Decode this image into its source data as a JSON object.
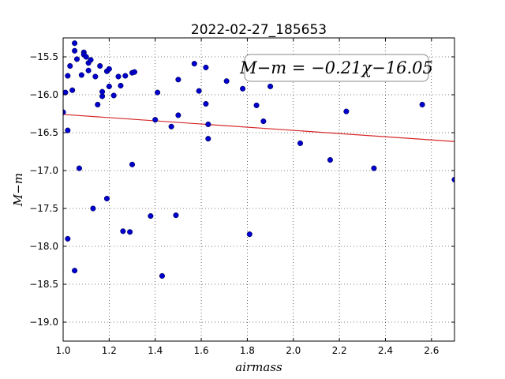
{
  "chart_data": {
    "type": "scatter",
    "title": "2022-02-27_185653",
    "xlabel": "airmass",
    "ylabel": "M−m",
    "xlim": [
      1.0,
      2.7
    ],
    "ylim": [
      -19.25,
      -15.25
    ],
    "x_ticks": [
      1.0,
      1.2,
      1.4,
      1.6,
      1.8,
      2.0,
      2.2,
      2.4,
      2.6
    ],
    "x_tick_labels": [
      "1.0",
      "1.2",
      "1.4",
      "1.6",
      "1.8",
      "2.0",
      "2.2",
      "2.4",
      "2.6"
    ],
    "y_ticks": [
      -15.5,
      -16.0,
      -16.5,
      -17.0,
      -17.5,
      -18.0,
      -18.5,
      -19.0
    ],
    "y_tick_labels": [
      "−15.5",
      "−16.0",
      "−16.5",
      "−17.0",
      "−17.5",
      "−18.0",
      "−18.5",
      "−19.0"
    ],
    "grid": true,
    "annotation": "M−m = −0.21χ−16.05",
    "fit_line": {
      "slope": -0.21,
      "intercept": -16.05,
      "color": "#d62728"
    },
    "point_color": "#0000cc",
    "points": [
      [
        1.0,
        -16.23
      ],
      [
        1.01,
        -15.97
      ],
      [
        1.02,
        -16.47
      ],
      [
        1.02,
        -15.75
      ],
      [
        1.03,
        -15.62
      ],
      [
        1.04,
        -15.94
      ],
      [
        1.05,
        -15.32
      ],
      [
        1.05,
        -15.42
      ],
      [
        1.06,
        -15.53
      ],
      [
        1.07,
        -16.97
      ],
      [
        1.08,
        -15.74
      ],
      [
        1.09,
        -15.44
      ],
      [
        1.09,
        -15.47
      ],
      [
        1.1,
        -15.5
      ],
      [
        1.11,
        -15.68
      ],
      [
        1.11,
        -15.58
      ],
      [
        1.12,
        -15.54
      ],
      [
        1.13,
        -17.5
      ],
      [
        1.14,
        -15.76
      ],
      [
        1.15,
        -16.13
      ],
      [
        1.16,
        -15.62
      ],
      [
        1.17,
        -16.02
      ],
      [
        1.17,
        -15.96
      ],
      [
        1.19,
        -15.69
      ],
      [
        1.2,
        -15.89
      ],
      [
        1.2,
        -15.66
      ],
      [
        1.22,
        -16.01
      ],
      [
        1.24,
        -15.76
      ],
      [
        1.25,
        -15.88
      ],
      [
        1.27,
        -15.75
      ],
      [
        1.29,
        -17.81
      ],
      [
        1.3,
        -15.71
      ],
      [
        1.31,
        -15.7
      ],
      [
        1.19,
        -17.37
      ],
      [
        1.26,
        -17.8
      ],
      [
        1.3,
        -16.92
      ],
      [
        1.38,
        -17.6
      ],
      [
        1.4,
        -16.33
      ],
      [
        1.41,
        -15.97
      ],
      [
        1.43,
        -18.39
      ],
      [
        1.47,
        -16.42
      ],
      [
        1.49,
        -17.59
      ],
      [
        1.5,
        -16.27
      ],
      [
        1.5,
        -15.8
      ],
      [
        1.57,
        -15.59
      ],
      [
        1.59,
        -15.95
      ],
      [
        1.62,
        -15.64
      ],
      [
        1.62,
        -16.12
      ],
      [
        1.63,
        -16.39
      ],
      [
        1.63,
        -16.58
      ],
      [
        1.71,
        -15.82
      ],
      [
        1.78,
        -15.92
      ],
      [
        1.81,
        -17.84
      ],
      [
        1.84,
        -16.14
      ],
      [
        1.87,
        -16.35
      ],
      [
        1.9,
        -15.89
      ],
      [
        2.03,
        -16.64
      ],
      [
        2.16,
        -16.86
      ],
      [
        2.23,
        -16.22
      ],
      [
        2.35,
        -16.97
      ],
      [
        2.56,
        -16.13
      ],
      [
        2.7,
        -17.12
      ],
      [
        1.02,
        -17.9
      ],
      [
        1.05,
        -18.32
      ]
    ]
  }
}
